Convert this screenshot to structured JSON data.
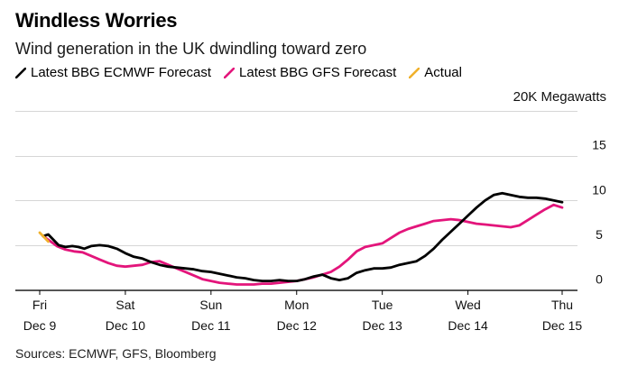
{
  "chart_data": {
    "type": "line",
    "title": "Windless Worries",
    "subtitle": "Wind generation in the UK dwindling toward zero",
    "ylabel": "20K Megawatts",
    "ylim": [
      0,
      20
    ],
    "yticks": [
      0,
      5,
      10,
      15
    ],
    "xlim": [
      0,
      6.1
    ],
    "x_ticks": [
      {
        "x": 0,
        "day": "Fri",
        "date": "Dec 9"
      },
      {
        "x": 1,
        "day": "Sat",
        "date": "Dec 10"
      },
      {
        "x": 2,
        "day": "Sun",
        "date": "Dec 11"
      },
      {
        "x": 3,
        "day": "Mon",
        "date": "Dec 12"
      },
      {
        "x": 4,
        "day": "Tue",
        "date": "Dec 13"
      },
      {
        "x": 5,
        "day": "Wed",
        "date": "Dec 14"
      },
      {
        "x": 6.1,
        "day": "Thu",
        "date": "Dec 15"
      }
    ],
    "series": [
      {
        "name": "Latest BBG ECMWF Forecast",
        "color": "#000000",
        "x": [
          0.04,
          0.1,
          0.15,
          0.22,
          0.3,
          0.38,
          0.45,
          0.52,
          0.6,
          0.7,
          0.8,
          0.9,
          1.0,
          1.1,
          1.2,
          1.3,
          1.4,
          1.5,
          1.6,
          1.7,
          1.8,
          1.9,
          2.0,
          2.1,
          2.2,
          2.3,
          2.4,
          2.5,
          2.6,
          2.7,
          2.8,
          2.9,
          3.0,
          3.1,
          3.2,
          3.3,
          3.4,
          3.5,
          3.6,
          3.7,
          3.8,
          3.9,
          4.0,
          4.1,
          4.2,
          4.3,
          4.4,
          4.5,
          4.6,
          4.7,
          4.8,
          4.9,
          5.0,
          5.1,
          5.2,
          5.3,
          5.4,
          5.5,
          5.6,
          5.7,
          5.8,
          5.9,
          6.0,
          6.1
        ],
        "values": [
          6.0,
          6.2,
          5.7,
          5.0,
          4.8,
          4.9,
          4.8,
          4.6,
          4.9,
          5.0,
          4.9,
          4.6,
          4.1,
          3.7,
          3.5,
          3.1,
          2.8,
          2.6,
          2.5,
          2.4,
          2.3,
          2.1,
          2.0,
          1.8,
          1.6,
          1.4,
          1.3,
          1.1,
          1.0,
          1.0,
          1.1,
          1.0,
          1.0,
          1.2,
          1.5,
          1.7,
          1.3,
          1.1,
          1.3,
          1.9,
          2.2,
          2.4,
          2.4,
          2.5,
          2.8,
          3.0,
          3.2,
          3.8,
          4.6,
          5.6,
          6.5,
          7.4,
          8.3,
          9.2,
          10.0,
          10.6,
          10.8,
          10.6,
          10.4,
          10.3,
          10.3,
          10.2,
          10.0,
          9.8
        ]
      },
      {
        "name": "Latest BBG GFS Forecast",
        "color": "#e3157b",
        "x": [
          0.04,
          0.1,
          0.2,
          0.3,
          0.4,
          0.5,
          0.6,
          0.7,
          0.8,
          0.9,
          1.0,
          1.1,
          1.2,
          1.3,
          1.4,
          1.5,
          1.6,
          1.7,
          1.8,
          1.9,
          2.0,
          2.1,
          2.2,
          2.3,
          2.4,
          2.5,
          2.6,
          2.7,
          2.8,
          2.9,
          3.0,
          3.1,
          3.2,
          3.3,
          3.4,
          3.5,
          3.6,
          3.7,
          3.8,
          3.9,
          4.0,
          4.1,
          4.2,
          4.3,
          4.4,
          4.5,
          4.6,
          4.7,
          4.8,
          4.9,
          5.0,
          5.1,
          5.2,
          5.3,
          5.4,
          5.5,
          5.6,
          5.7,
          5.8,
          5.9,
          6.0,
          6.1
        ],
        "values": [
          6.0,
          5.6,
          4.9,
          4.5,
          4.3,
          4.2,
          3.8,
          3.4,
          3.0,
          2.7,
          2.6,
          2.7,
          2.8,
          3.1,
          3.2,
          2.8,
          2.4,
          2.0,
          1.6,
          1.2,
          1.0,
          0.8,
          0.7,
          0.6,
          0.6,
          0.6,
          0.7,
          0.7,
          0.8,
          0.9,
          1.0,
          1.2,
          1.4,
          1.7,
          2.0,
          2.6,
          3.4,
          4.3,
          4.8,
          5.0,
          5.2,
          5.8,
          6.4,
          6.8,
          7.1,
          7.4,
          7.7,
          7.8,
          7.9,
          7.8,
          7.6,
          7.4,
          7.3,
          7.2,
          7.1,
          7.0,
          7.2,
          7.8,
          8.4,
          9.0,
          9.5,
          9.2
        ]
      },
      {
        "name": "Actual",
        "color": "#f0b12c",
        "x": [
          0.0,
          0.04,
          0.1
        ],
        "values": [
          6.4,
          6.0,
          5.4
        ]
      }
    ]
  },
  "source": "Sources: ECMWF, GFS, Bloomberg"
}
